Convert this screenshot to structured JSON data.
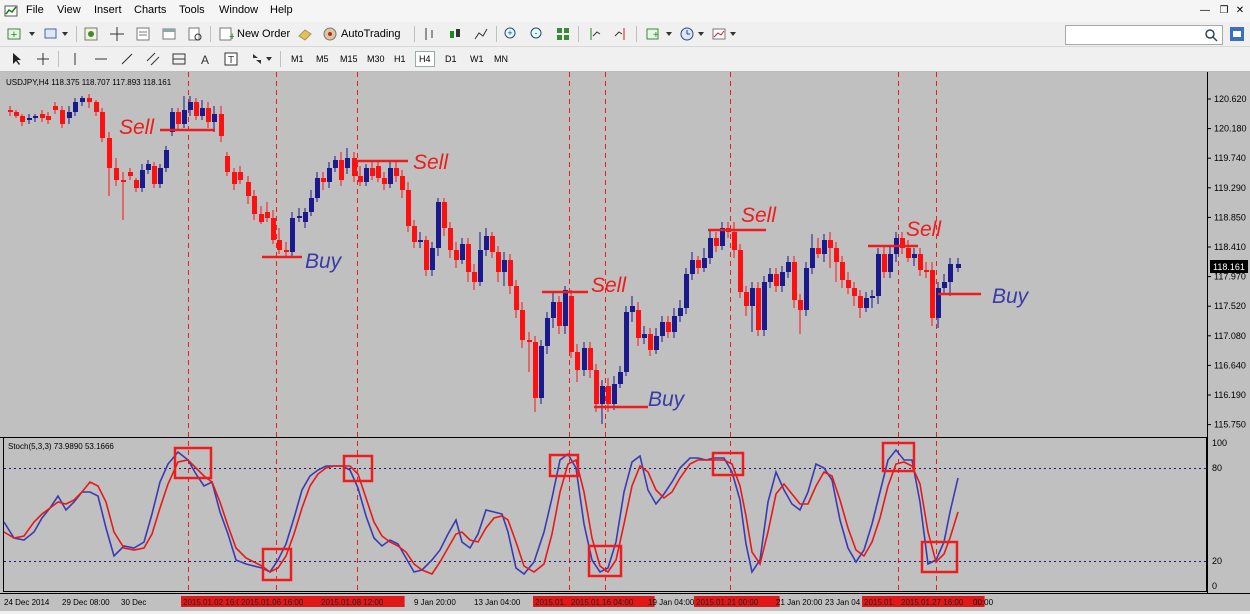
{
  "menu": {
    "items": [
      "File",
      "View",
      "Insert",
      "Charts",
      "Tools",
      "Window",
      "Help"
    ]
  },
  "toolbar": {
    "new_order_label": "New Order",
    "autotrading_label": "AutoTrading"
  },
  "timeframes": [
    "M1",
    "M5",
    "M15",
    "M30",
    "H1",
    "H4",
    "D1",
    "W1",
    "MN"
  ],
  "active_timeframe": "H4",
  "chart": {
    "header": "USDJPY,H4  118.375 118.707 117.893 118.161",
    "current_price": "118.161",
    "price_scale": [
      "120.620",
      "120.180",
      "119.740",
      "119.290",
      "118.850",
      "118.410",
      "117.970",
      "117.520",
      "117.080",
      "116.640",
      "116.190",
      "115.750"
    ],
    "indicator_title": "Stoch(5,3,3) 73.9890 53.1666",
    "indicator_scale": [
      "100",
      "80",
      "20",
      "0"
    ],
    "annotations": {
      "sell": "Sell",
      "buy": "Buy"
    },
    "time_labels": [
      "24 Dec 2014",
      "29 Dec 08:00",
      "30 Dec",
      "2015.01.02 16:00",
      "2015.01.06 16:00",
      "2015.01.08 12:00",
      "9 Jan 20:00",
      "13 Jan 04:00",
      "2015.01.",
      "2015.01.16 04:00",
      "19 Jan 04:00",
      "2015.01.21 00:00",
      "21 Jan 20:00",
      "23 Jan 04",
      "2015.01.",
      "2015.01.27 16:00",
      "00:00"
    ]
  },
  "colors": {
    "chart_bg": "#c0c0c0",
    "bull": "#1a1a8c",
    "bear": "#ff1010",
    "signal": "#ee1c1c",
    "buy_text": "#3a3aa8",
    "stoch_main": "#3a3ab4",
    "stoch_signal": "#e61919"
  }
}
